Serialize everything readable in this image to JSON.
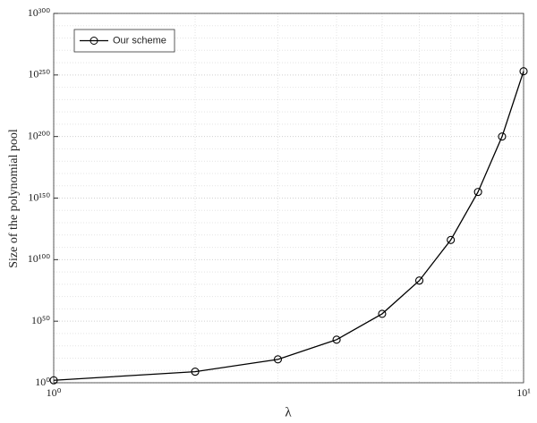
{
  "chart_data": {
    "type": "line",
    "xlabel": "λ",
    "ylabel": "Size of the polynomial pool",
    "x": [
      1,
      2,
      3,
      4,
      5,
      6,
      7,
      8,
      9,
      10
    ],
    "series": [
      {
        "name": "Our scheme",
        "color": "#000000",
        "values": [
          100.0,
          1000000000.0,
          1e+19,
          1e+35,
          1e+56,
          1e+83,
          1e+116,
          1e+155,
          1e+200,
          1e+253
        ]
      }
    ],
    "xlim": [
      1,
      10
    ],
    "ylim": [
      1,
      1e+300
    ],
    "xticks": [
      {
        "value": 1,
        "label": "10⁰"
      },
      {
        "value": 10,
        "label": "10¹"
      }
    ],
    "yticks": [
      {
        "value": 1,
        "label": "10⁰"
      },
      {
        "value": 1e+50,
        "label": "10⁵⁰"
      },
      {
        "value": 1e+100,
        "label": "10¹⁰⁰"
      },
      {
        "value": 1e+150,
        "label": "10¹⁵⁰"
      },
      {
        "value": 1e+200,
        "label": "10²⁰⁰"
      },
      {
        "value": 1e+250,
        "label": "10²⁵⁰"
      },
      {
        "value": 1e+300,
        "label": "10³⁰⁰"
      }
    ],
    "xscale": "log",
    "yscale": "log",
    "grid": true,
    "legend": "upper left"
  }
}
